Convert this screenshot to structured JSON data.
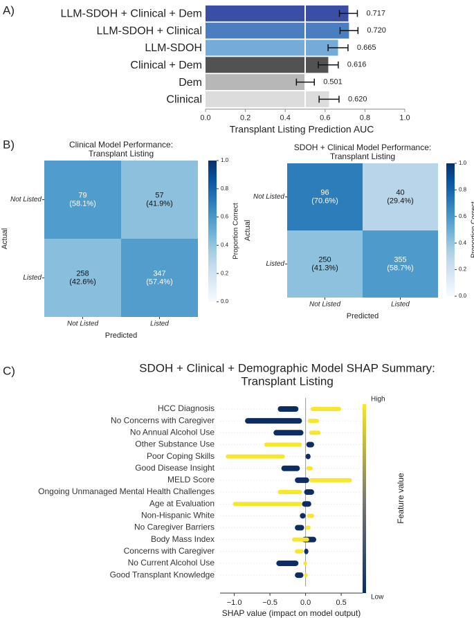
{
  "chart_data": [
    {
      "type": "bar",
      "panel_label": "A)",
      "categories": [
        "LLM-SDOH + Clinical + Dem",
        "LLM-SDOH + Clinical",
        "LLM-SDOH",
        "Clinical + Dem",
        "Dem",
        "Clinical"
      ],
      "values": [
        0.717,
        0.72,
        0.665,
        0.616,
        0.501,
        0.62
      ],
      "value_labels": [
        "0.717",
        "0.720",
        "0.665",
        "0.616",
        "0.501",
        "0.620"
      ],
      "errors": [
        0.045,
        0.045,
        0.05,
        0.05,
        0.045,
        0.05
      ],
      "colors": [
        "#3a4ea3",
        "#4a7ec1",
        "#74abd8",
        "#525252",
        "#b7b7b7",
        "#dcdcdc"
      ],
      "reference_x": 0.5,
      "xlim": [
        0,
        1
      ],
      "xticks": [
        {
          "value": 0,
          "label": "0.0"
        },
        {
          "value": 0.2,
          "label": "0.2"
        },
        {
          "value": 0.4,
          "label": "0.4"
        },
        {
          "value": 0.6,
          "label": "0.6"
        },
        {
          "value": 0.8,
          "label": "0.8"
        },
        {
          "value": 1,
          "label": "1.0"
        }
      ],
      "xlabel": "Transplant Listing Prediction AUC"
    },
    {
      "type": "heatmap",
      "panel_label": "B)",
      "title": [
        "Clinical Model Performance:",
        "Transplant Listing"
      ],
      "row_labels": [
        "Not Listed",
        "Listed"
      ],
      "col_labels": [
        "Not Listed",
        "Listed"
      ],
      "ylabel": "Actual",
      "xlabel": "Predicted",
      "values": [
        [
          79,
          57
        ],
        [
          258,
          347
        ]
      ],
      "proportions": [
        [
          0.581,
          0.419
        ],
        [
          0.426,
          0.574
        ]
      ],
      "proportion_labels": [
        [
          "(58.1%)",
          "(41.9%)"
        ],
        [
          "(42.6%)",
          "(57.4%)"
        ]
      ],
      "colorbar_label": "Proportion Correct",
      "clim": [
        0,
        1
      ],
      "cticks": [
        {
          "value": 0,
          "label": "0.0"
        },
        {
          "value": 0.2,
          "label": "0.2"
        },
        {
          "value": 0.4,
          "label": "0.4"
        },
        {
          "value": 0.6,
          "label": "0.6"
        },
        {
          "value": 0.8,
          "label": "0.8"
        },
        {
          "value": 1,
          "label": "1.0"
        }
      ]
    },
    {
      "type": "heatmap",
      "title": [
        "SDOH + Clinical Model Performance:",
        "Transplant Listing"
      ],
      "row_labels": [
        "Not Listed",
        "Listed"
      ],
      "col_labels": [
        "Not Listed",
        "Listed"
      ],
      "ylabel": "Actual",
      "xlabel": "Predicted",
      "values": [
        [
          96,
          40
        ],
        [
          250,
          355
        ]
      ],
      "proportions": [
        [
          0.706,
          0.294
        ],
        [
          0.413,
          0.587
        ]
      ],
      "proportion_labels": [
        [
          "(70.6%)",
          "(29.4%)"
        ],
        [
          "(41.3%)",
          "(58.7%)"
        ]
      ],
      "colorbar_label": "Proportion Correct",
      "clim": [
        0,
        1
      ],
      "cticks": [
        {
          "value": 0,
          "label": "0.0"
        },
        {
          "value": 0.2,
          "label": "0.2"
        },
        {
          "value": 0.4,
          "label": "0.4"
        },
        {
          "value": 0.6,
          "label": "0.6"
        },
        {
          "value": 0.8,
          "label": "0.8"
        },
        {
          "value": 1,
          "label": "1.0"
        }
      ]
    },
    {
      "type": "shap",
      "panel_label": "C)",
      "title": [
        "SDOH + Clinical + Demographic Model SHAP Summary:",
        "Transplant Listing"
      ],
      "features": [
        "HCC Diagnosis",
        "No Concerns with Caregiver",
        "No Annual Alcohol Use",
        "Other Substance Use",
        "Poor Coping Skills",
        "Good Disease Insight",
        "MELD Score",
        "Ongoing Unmanaged Mental Health Challenges",
        "Age at Evaluation",
        "Non-Hispanic White",
        "No Caregiver Barriers",
        "Body Mass Index",
        "Concerns with Caregiver",
        "No Current Alcohol Use",
        "Good Transplant Knowledge"
      ],
      "low_range": [
        [
          -0.39,
          -0.1
        ],
        [
          -0.85,
          -0.05
        ],
        [
          -0.45,
          -0.03
        ],
        [
          0.01,
          0.12
        ],
        [
          0,
          0.07
        ],
        [
          -0.34,
          -0.08
        ],
        [
          -0.15,
          0.05
        ],
        [
          -0.02,
          0.12
        ],
        [
          -0.05,
          0.08
        ],
        [
          -0.08,
          0
        ],
        [
          -0.15,
          -0.02
        ],
        [
          -0.05,
          0.15
        ],
        [
          -0.02,
          0.04
        ],
        [
          -0.41,
          -0.1
        ],
        [
          -0.15,
          -0.03
        ]
      ],
      "high_range": [
        [
          0.07,
          0.5
        ],
        [
          0.03,
          0.19
        ],
        [
          0.05,
          0.21
        ],
        [
          -0.58,
          -0.05
        ],
        [
          -1.12,
          -0.29
        ],
        [
          0.01,
          0.1
        ],
        [
          0.05,
          0.65
        ],
        [
          -0.39,
          -0.05
        ],
        [
          -1.02,
          -0.05
        ],
        [
          0.02,
          0.12
        ],
        [
          0,
          0.07
        ],
        [
          -0.19,
          0.05
        ],
        [
          -0.15,
          -0.03
        ],
        [
          -0.03,
          0.02
        ],
        [
          -0.02,
          0.03
        ]
      ],
      "low_color": "#0c2c62",
      "high_color": "#f7e62c",
      "xlim": [
        -1.2,
        0.8
      ],
      "xticks": [
        {
          "value": -1,
          "label": "−1.0"
        },
        {
          "value": -0.5,
          "label": "−0.5"
        },
        {
          "value": 0,
          "label": "0.0"
        },
        {
          "value": 0.5,
          "label": "0.5"
        }
      ],
      "xlabel": "SHAP value (impact on model output)",
      "colorbar_label": "Feature value",
      "colorbar_high": "High",
      "colorbar_low": "Low"
    }
  ]
}
